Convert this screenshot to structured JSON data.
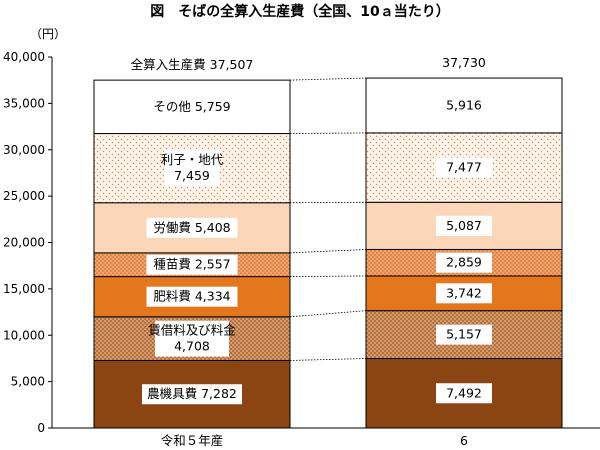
{
  "chart_data": {
    "type": "bar",
    "stacked": true,
    "title": "図　そばの全算入生産費（全国、10ａ当たり）",
    "ylabel": "（円）",
    "ylim": [
      0,
      40000
    ],
    "yticks": [
      0,
      5000,
      10000,
      15000,
      20000,
      25000,
      30000,
      35000,
      40000
    ],
    "ytick_labels": [
      "0",
      "5,000",
      "10,000",
      "15,000",
      "20,000",
      "25,000",
      "30,000",
      "35,000",
      "40,000"
    ],
    "categories": [
      "令和５年産",
      "6"
    ],
    "totals": [
      37507,
      37730
    ],
    "total_labels": [
      "全算入生産費 37,507",
      "37,730"
    ],
    "series": [
      {
        "name": "農機具費",
        "values": [
          7282,
          7492
        ],
        "labels": [
          "農機具費 7,282",
          "7,492"
        ],
        "color": "#8b4512",
        "pattern": "solid"
      },
      {
        "name": "賃借料及び料金",
        "values": [
          4708,
          5157
        ],
        "labels": [
          "賃借料及び料金\n4,708",
          "5,157"
        ],
        "color": "#b8703a",
        "pattern": "dots-dense"
      },
      {
        "name": "肥料費",
        "values": [
          4334,
          3742
        ],
        "labels": [
          "肥料費 4,334",
          "3,742"
        ],
        "color": "#e4761e",
        "pattern": "solid"
      },
      {
        "name": "種苗費",
        "values": [
          2557,
          2859
        ],
        "labels": [
          "種苗費 2,557",
          "2,859"
        ],
        "color": "#f3a36a",
        "pattern": "dots"
      },
      {
        "name": "労働費",
        "values": [
          5408,
          5087
        ],
        "labels": [
          "労働費 5,408",
          "5,087"
        ],
        "color": "#fbd6b9",
        "pattern": "solid"
      },
      {
        "name": "利子・地代",
        "values": [
          7459,
          7477
        ],
        "labels": [
          "利子・地代\n7,459",
          "7,477"
        ],
        "color": "#fdf4ec",
        "pattern": "dots-sparse"
      },
      {
        "name": "その他",
        "values": [
          5759,
          5916
        ],
        "labels": [
          "その他 5,759",
          "5,916"
        ],
        "color": "#ffffff",
        "pattern": "solid"
      }
    ]
  }
}
